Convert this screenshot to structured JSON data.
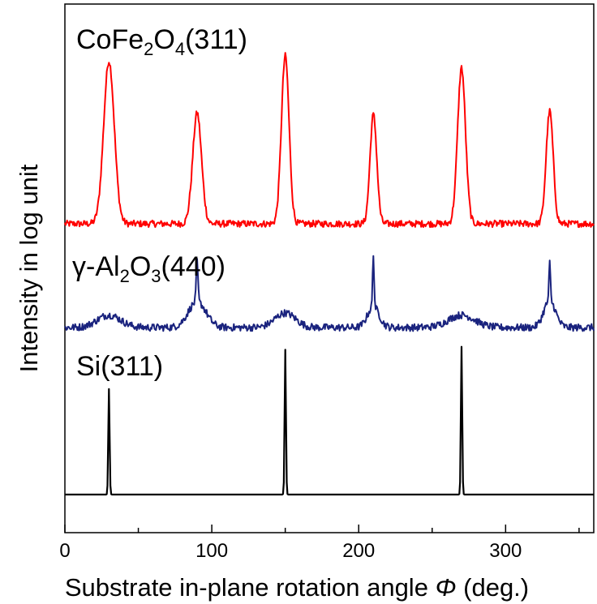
{
  "chart_data": {
    "type": "line",
    "xlabel": "Substrate in-plane rotation angle",
    "xlabel_symbol": "Φ",
    "xlabel_unit": "(deg.)",
    "ylabel": "Intensity in log unit",
    "xlim": [
      0,
      360
    ],
    "x_ticks": [
      0,
      100,
      200,
      300
    ],
    "y_ticks_labeled": false,
    "grid": false,
    "legend": "none",
    "series": [
      {
        "name": "CoFe2O4(311)",
        "label_parts": [
          {
            "text": "CoFe",
            "sub": false
          },
          {
            "text": "2",
            "sub": true
          },
          {
            "text": "O",
            "sub": false
          },
          {
            "text": "4",
            "sub": true
          },
          {
            "text": "(311)",
            "sub": false
          }
        ],
        "color": "#ff0000",
        "baseline": 0,
        "noise": 0.02,
        "peaks": [
          {
            "x": 30,
            "height": 0.97,
            "width": 3.6
          },
          {
            "x": 90,
            "height": 0.66,
            "width": 3.0
          },
          {
            "x": 150,
            "height": 1.0,
            "width": 2.6
          },
          {
            "x": 210,
            "height": 0.65,
            "width": 2.3
          },
          {
            "x": 270,
            "height": 0.93,
            "width": 2.7
          },
          {
            "x": 330,
            "height": 0.67,
            "width": 2.4
          }
        ]
      },
      {
        "name": "γ-Al2O3(440)",
        "label_parts": [
          {
            "text": "γ-Al",
            "sub": false
          },
          {
            "text": "2",
            "sub": true
          },
          {
            "text": "O",
            "sub": false
          },
          {
            "text": "3",
            "sub": true
          },
          {
            "text": "(440)",
            "sub": false
          }
        ],
        "color": "#1a237e",
        "baseline": 0,
        "noise": 0.035,
        "peaks": [
          {
            "x": 30,
            "height": 0.12,
            "width": 8
          },
          {
            "x": 90,
            "height": 0.25,
            "width": 6
          },
          {
            "x": 90,
            "height": 0.38,
            "width": 0.6
          },
          {
            "x": 150,
            "height": 0.14,
            "width": 7
          },
          {
            "x": 210,
            "height": 0.2,
            "width": 4
          },
          {
            "x": 210,
            "height": 0.5,
            "width": 0.5
          },
          {
            "x": 270,
            "height": 0.12,
            "width": 9
          },
          {
            "x": 330,
            "height": 0.26,
            "width": 4
          },
          {
            "x": 330,
            "height": 0.36,
            "width": 0.5
          }
        ]
      },
      {
        "name": "Si(311)",
        "label_parts": [
          {
            "text": "Si(311)",
            "sub": false
          }
        ],
        "color": "#000000",
        "baseline": 0,
        "noise": 0.0,
        "peaks": [
          {
            "x": 30,
            "height": 0.7,
            "width": 0.45
          },
          {
            "x": 150,
            "height": 0.96,
            "width": 0.45
          },
          {
            "x": 270,
            "height": 0.98,
            "width": 0.45
          }
        ]
      }
    ]
  }
}
